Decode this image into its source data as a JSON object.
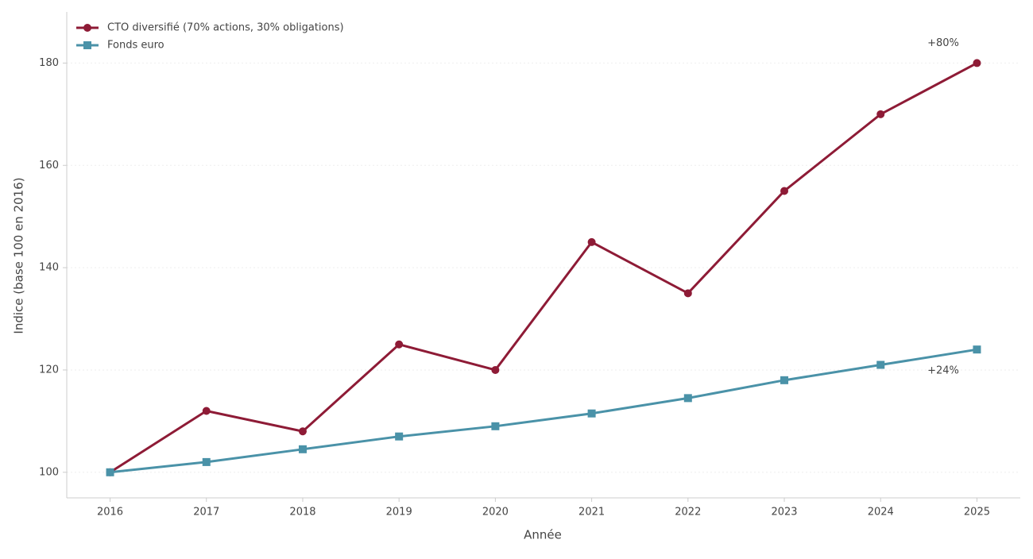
{
  "chart_data": {
    "type": "line",
    "x": [
      2016,
      2017,
      2018,
      2019,
      2020,
      2021,
      2022,
      2023,
      2024,
      2025
    ],
    "series": [
      {
        "name": "CTO diversifié (70% actions, 30% obligations)",
        "color": "#8e1b36",
        "marker": "circle",
        "values": [
          100,
          112,
          108,
          125,
          120,
          145,
          135,
          155,
          170,
          180
        ]
      },
      {
        "name": "Fonds euro",
        "color": "#4a92a8",
        "marker": "square",
        "values": [
          100,
          102,
          104.5,
          107,
          109,
          111.5,
          114.5,
          118,
          121,
          124
        ]
      }
    ],
    "annotations": [
      {
        "text": "+80%",
        "x": 2024.65,
        "y": 183.9,
        "color": "#8e1b36"
      },
      {
        "text": "+24%",
        "x": 2024.65,
        "y": 119.8,
        "color": "#4a92a8"
      }
    ],
    "xlabel": "Année",
    "ylabel": "Indice (base 100 en 2016)",
    "xlim": [
      2015.55,
      2025.45
    ],
    "ylim": [
      95,
      190
    ],
    "xticks": [
      2016,
      2017,
      2018,
      2019,
      2020,
      2021,
      2022,
      2023,
      2024,
      2025
    ],
    "yticks": [
      100,
      120,
      140,
      160,
      180
    ],
    "grid": true,
    "legend": "upper left"
  }
}
